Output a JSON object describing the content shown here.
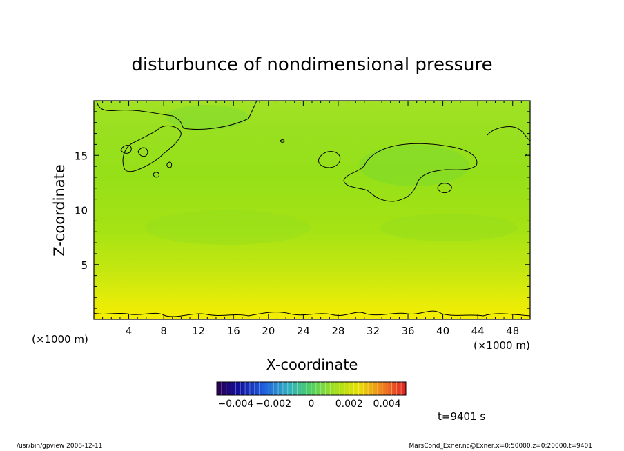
{
  "chart_data": {
    "type": "heatmap",
    "title": "disturbunce of nondimensional pressure",
    "xlabel": "X-coordinate",
    "ylabel": "Z-coordinate",
    "x_unit": "(×1000 m)",
    "y_unit": "(×1000 m)",
    "xlim": [
      0,
      50
    ],
    "ylim": [
      0,
      20
    ],
    "x_ticks": [
      4,
      8,
      12,
      16,
      20,
      24,
      28,
      32,
      36,
      40,
      44,
      48
    ],
    "y_ticks": [
      5,
      10,
      15
    ],
    "colorbar": {
      "range": [
        -0.005,
        0.005
      ],
      "ticks": [
        -0.004,
        -0.002,
        0,
        0.002,
        0.004
      ],
      "tick_labels": [
        "−0.004",
        "−0.002",
        "0",
        "0.002",
        "0.004"
      ]
    },
    "field": {
      "description_values": [
        {
          "z": 0.5,
          "value": 0.0022
        },
        {
          "z": 3,
          "value": 0.0015
        },
        {
          "z": 8,
          "value": 0.0009
        },
        {
          "z": 13,
          "value": 0.0006
        },
        {
          "z": 19,
          "value": 0.0008
        }
      ]
    },
    "contour_levels": [
      0.0003,
      0.002
    ],
    "annotation": "t=9401 s"
  },
  "colors": {
    "field_low": "#4fd25a",
    "field_mid": "#9be01a",
    "field_high": "#f2ef00"
  },
  "footer": {
    "left": "/usr/bin/gpview   2008-12-11",
    "right": "MarsCond_Exner.nc@Exner,x=0:50000,z=0:20000,t=9401"
  }
}
